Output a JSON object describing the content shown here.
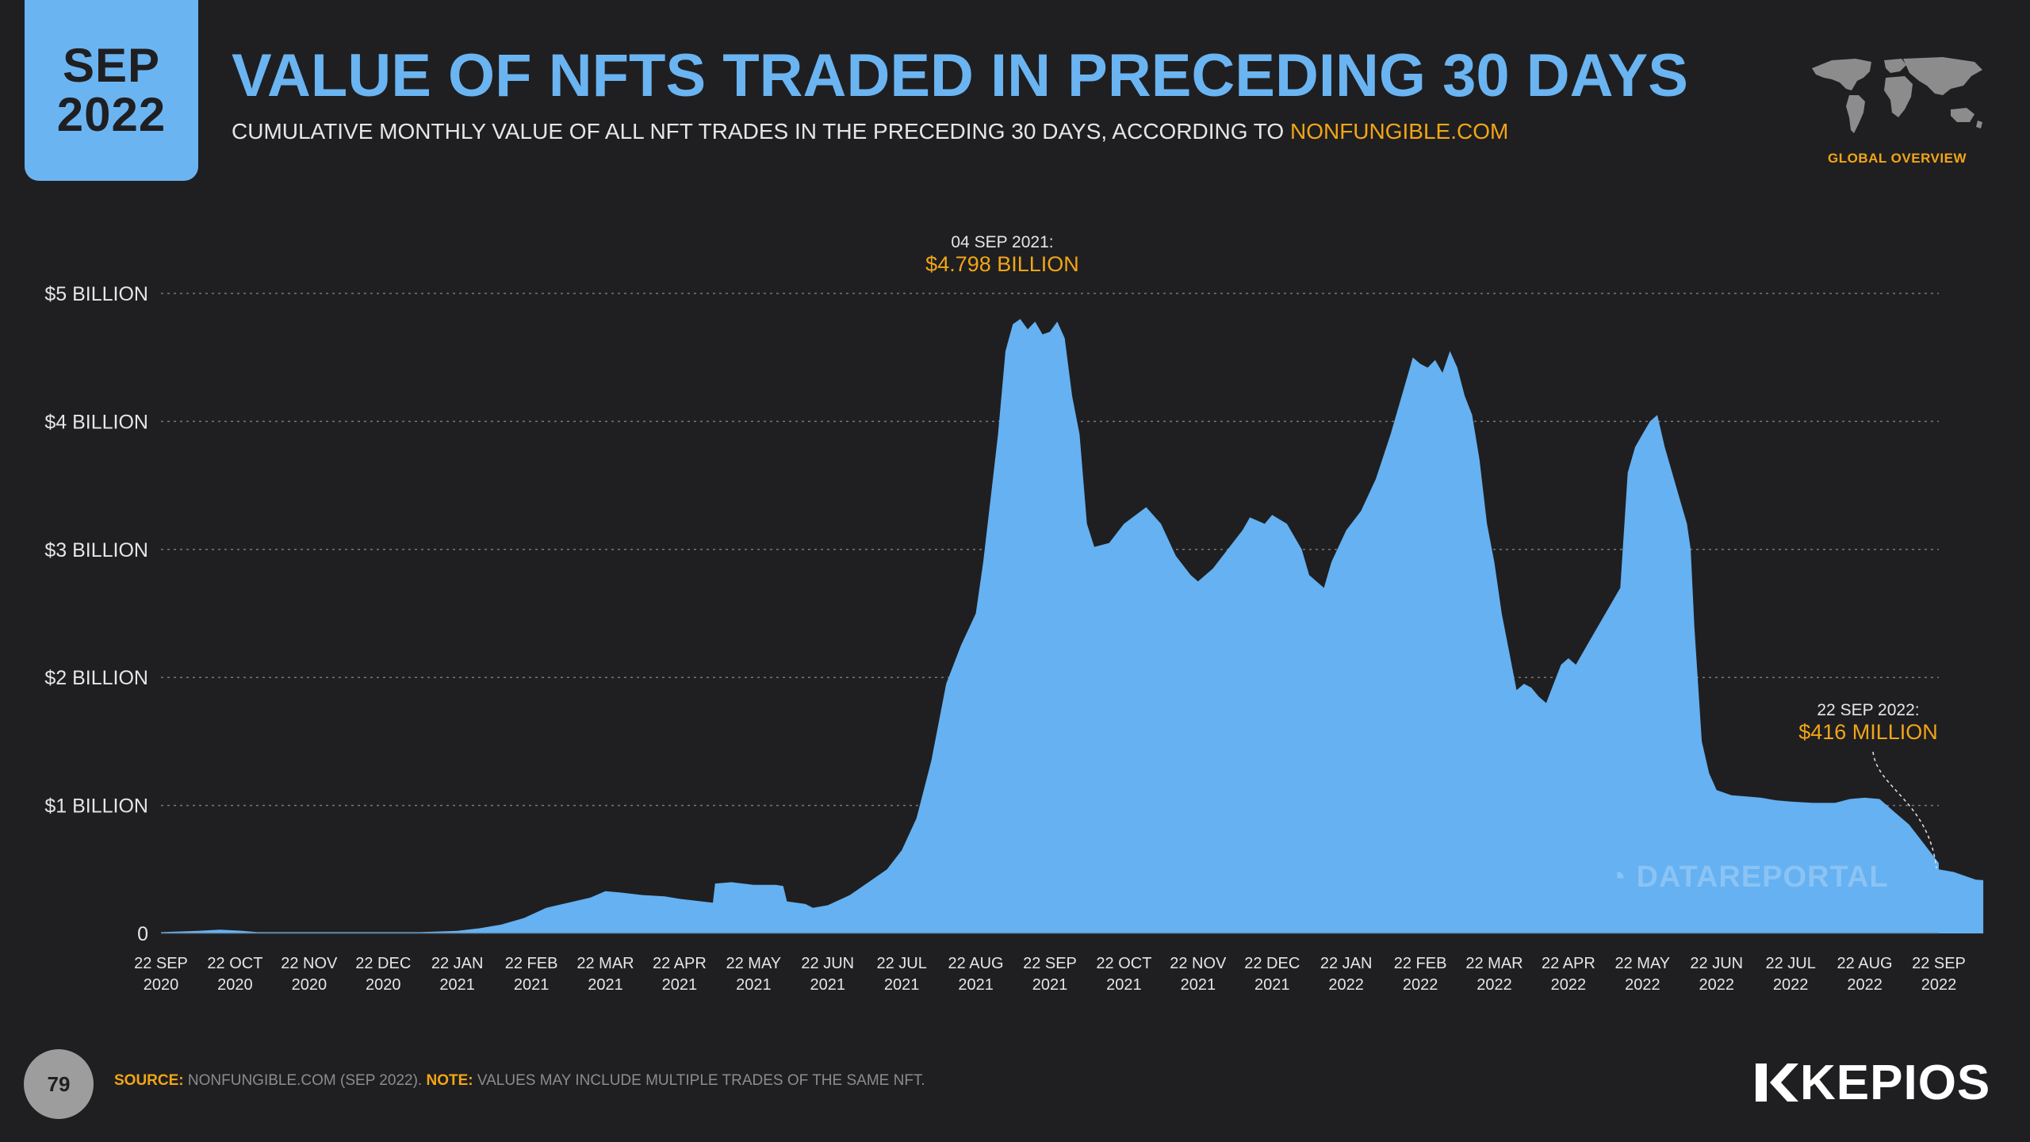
{
  "badge": {
    "month": "SEP",
    "year": "2022"
  },
  "header": {
    "title": "VALUE OF NFTS TRADED IN PRECEDING 30 DAYS",
    "subtitle_prefix": "CUMULATIVE MONTHLY VALUE OF ALL NFT TRADES IN THE PRECEDING 30 DAYS, ACCORDING TO ",
    "subtitle_link": "NONFUNGIBLE.COM",
    "global_label": "GLOBAL OVERVIEW"
  },
  "footer": {
    "page_number": "79",
    "source_label": "SOURCE:",
    "source_text": " NONFUNGIBLE.COM (SEP 2022). ",
    "note_label": "NOTE:",
    "note_text": " VALUES MAY INCLUDE MULTIPLE TRADES OF THE SAME NFT.",
    "brand": "KEPIOS",
    "watermark": "DATAREPORTAL"
  },
  "colors": {
    "background": "#1f1f21",
    "accent_blue": "#6bb4f2",
    "area_fill": "#65b1f1",
    "accent_orange": "#f2a516",
    "text": "#e6e6e6",
    "grid": "#777777"
  },
  "icons": {
    "map": "world-map-icon",
    "brand": "kepios-logo-icon",
    "watermark": "datareportal-icon"
  },
  "chart_data": {
    "type": "area",
    "title": "VALUE OF NFTS TRADED IN PRECEDING 30 DAYS",
    "xlabel": "",
    "ylabel": "",
    "ylim": [
      0,
      5
    ],
    "y_unit": "billion USD",
    "grid": true,
    "y_ticks": [
      {
        "value": 0,
        "label": "0"
      },
      {
        "value": 1,
        "label": "$1 BILLION"
      },
      {
        "value": 2,
        "label": "$2 BILLION"
      },
      {
        "value": 3,
        "label": "$3 BILLION"
      },
      {
        "value": 4,
        "label": "$4 BILLION"
      },
      {
        "value": 5,
        "label": "$5 BILLION"
      }
    ],
    "x_ticks": [
      {
        "line1": "22 SEP",
        "line2": "2020"
      },
      {
        "line1": "22 OCT",
        "line2": "2020"
      },
      {
        "line1": "22 NOV",
        "line2": "2020"
      },
      {
        "line1": "22 DEC",
        "line2": "2020"
      },
      {
        "line1": "22 JAN",
        "line2": "2021"
      },
      {
        "line1": "22 FEB",
        "line2": "2021"
      },
      {
        "line1": "22 MAR",
        "line2": "2021"
      },
      {
        "line1": "22 APR",
        "line2": "2021"
      },
      {
        "line1": "22 MAY",
        "line2": "2021"
      },
      {
        "line1": "22 JUN",
        "line2": "2021"
      },
      {
        "line1": "22 JUL",
        "line2": "2021"
      },
      {
        "line1": "22 AUG",
        "line2": "2021"
      },
      {
        "line1": "22 SEP",
        "line2": "2021"
      },
      {
        "line1": "22 OCT",
        "line2": "2021"
      },
      {
        "line1": "22 NOV",
        "line2": "2021"
      },
      {
        "line1": "22 DEC",
        "line2": "2021"
      },
      {
        "line1": "22 JAN",
        "line2": "2022"
      },
      {
        "line1": "22 FEB",
        "line2": "2022"
      },
      {
        "line1": "22 MAR",
        "line2": "2022"
      },
      {
        "line1": "22 APR",
        "line2": "2022"
      },
      {
        "line1": "22 MAY",
        "line2": "2022"
      },
      {
        "line1": "22 JUN",
        "line2": "2022"
      },
      {
        "line1": "22 JUL",
        "line2": "2022"
      },
      {
        "line1": "22 AUG",
        "line2": "2022"
      },
      {
        "line1": "22 SEP",
        "line2": "2022"
      }
    ],
    "series": [
      {
        "x_unit": "months since 22 SEP 2020",
        "points": [
          [
            0,
            0.01
          ],
          [
            0.5,
            0.02
          ],
          [
            0.8,
            0.03
          ],
          [
            1.1,
            0.02
          ],
          [
            1.3,
            0.01
          ],
          [
            2,
            0.01
          ],
          [
            3,
            0.01
          ],
          [
            3.5,
            0.01
          ],
          [
            4,
            0.02
          ],
          [
            4.3,
            0.04
          ],
          [
            4.6,
            0.07
          ],
          [
            4.9,
            0.12
          ],
          [
            5.2,
            0.2
          ],
          [
            5.5,
            0.24
          ],
          [
            5.8,
            0.28
          ],
          [
            6,
            0.33
          ],
          [
            6.2,
            0.32
          ],
          [
            6.5,
            0.3
          ],
          [
            6.8,
            0.29
          ],
          [
            7,
            0.27
          ],
          [
            7.3,
            0.25
          ],
          [
            7.45,
            0.24
          ],
          [
            7.48,
            0.39
          ],
          [
            7.7,
            0.4
          ],
          [
            8,
            0.38
          ],
          [
            8.3,
            0.38
          ],
          [
            8.4,
            0.37
          ],
          [
            8.45,
            0.25
          ],
          [
            8.7,
            0.23
          ],
          [
            8.8,
            0.2
          ],
          [
            9,
            0.22
          ],
          [
            9.3,
            0.3
          ],
          [
            9.6,
            0.42
          ],
          [
            9.8,
            0.5
          ],
          [
            10,
            0.65
          ],
          [
            10.2,
            0.9
          ],
          [
            10.4,
            1.35
          ],
          [
            10.6,
            1.95
          ],
          [
            10.8,
            2.25
          ],
          [
            11,
            2.5
          ],
          [
            11.1,
            2.9
          ],
          [
            11.2,
            3.4
          ],
          [
            11.3,
            3.9
          ],
          [
            11.4,
            4.55
          ],
          [
            11.5,
            4.76
          ],
          [
            11.6,
            4.8
          ],
          [
            11.7,
            4.72
          ],
          [
            11.8,
            4.78
          ],
          [
            11.9,
            4.68
          ],
          [
            12,
            4.7
          ],
          [
            12.1,
            4.78
          ],
          [
            12.2,
            4.65
          ],
          [
            12.3,
            4.2
          ],
          [
            12.4,
            3.9
          ],
          [
            12.5,
            3.2
          ],
          [
            12.6,
            3.02
          ],
          [
            12.8,
            3.05
          ],
          [
            13,
            3.2
          ],
          [
            13.3,
            3.33
          ],
          [
            13.5,
            3.2
          ],
          [
            13.7,
            2.95
          ],
          [
            13.9,
            2.8
          ],
          [
            14,
            2.75
          ],
          [
            14.2,
            2.85
          ],
          [
            14.4,
            3
          ],
          [
            14.6,
            3.15
          ],
          [
            14.7,
            3.25
          ],
          [
            14.9,
            3.2
          ],
          [
            15,
            3.27
          ],
          [
            15.2,
            3.2
          ],
          [
            15.4,
            3
          ],
          [
            15.5,
            2.8
          ],
          [
            15.7,
            2.7
          ],
          [
            15.8,
            2.9
          ],
          [
            16,
            3.15
          ],
          [
            16.2,
            3.3
          ],
          [
            16.4,
            3.55
          ],
          [
            16.6,
            3.9
          ],
          [
            16.8,
            4.3
          ],
          [
            16.9,
            4.5
          ],
          [
            17,
            4.45
          ],
          [
            17.1,
            4.42
          ],
          [
            17.2,
            4.48
          ],
          [
            17.3,
            4.38
          ],
          [
            17.4,
            4.55
          ],
          [
            17.5,
            4.42
          ],
          [
            17.6,
            4.2
          ],
          [
            17.7,
            4.05
          ],
          [
            17.8,
            3.7
          ],
          [
            17.9,
            3.2
          ],
          [
            18,
            2.9
          ],
          [
            18.1,
            2.5
          ],
          [
            18.2,
            2.2
          ],
          [
            18.3,
            1.9
          ],
          [
            18.4,
            1.95
          ],
          [
            18.5,
            1.92
          ],
          [
            18.6,
            1.85
          ],
          [
            18.7,
            1.8
          ],
          [
            18.8,
            1.95
          ],
          [
            18.9,
            2.1
          ],
          [
            19,
            2.15
          ],
          [
            19.1,
            2.1
          ],
          [
            19.3,
            2.3
          ],
          [
            19.5,
            2.5
          ],
          [
            19.7,
            2.7
          ],
          [
            19.8,
            3.6
          ],
          [
            19.9,
            3.8
          ],
          [
            20,
            3.9
          ],
          [
            20.1,
            4
          ],
          [
            20.2,
            4.05
          ],
          [
            20.3,
            3.8
          ],
          [
            20.4,
            3.6
          ],
          [
            20.5,
            3.4
          ],
          [
            20.6,
            3.2
          ],
          [
            20.65,
            3.0
          ],
          [
            20.7,
            2.4
          ],
          [
            20.8,
            1.5
          ],
          [
            20.9,
            1.25
          ],
          [
            21,
            1.12
          ],
          [
            21.2,
            1.08
          ],
          [
            21.4,
            1.07
          ],
          [
            21.6,
            1.06
          ],
          [
            21.8,
            1.04
          ],
          [
            22,
            1.03
          ],
          [
            22.3,
            1.02
          ],
          [
            22.6,
            1.02
          ],
          [
            22.8,
            1.05
          ],
          [
            23,
            1.06
          ],
          [
            23.2,
            1.05
          ],
          [
            23.4,
            0.95
          ],
          [
            23.6,
            0.85
          ],
          [
            23.8,
            0.7
          ],
          [
            24,
            0.55
          ],
          [
            24.2,
            0.48
          ],
          [
            24.35,
            0.45
          ],
          [
            24,
            0.5
          ],
          [
            24.5,
            0.42
          ],
          [
            24.6,
            0.416
          ]
        ]
      }
    ],
    "annotations": [
      {
        "date": "04 SEP 2021:",
        "value_label": "$4.798 BILLION"
      },
      {
        "date": "22 SEP 2022:",
        "value_label": "$416 MILLION"
      }
    ]
  }
}
